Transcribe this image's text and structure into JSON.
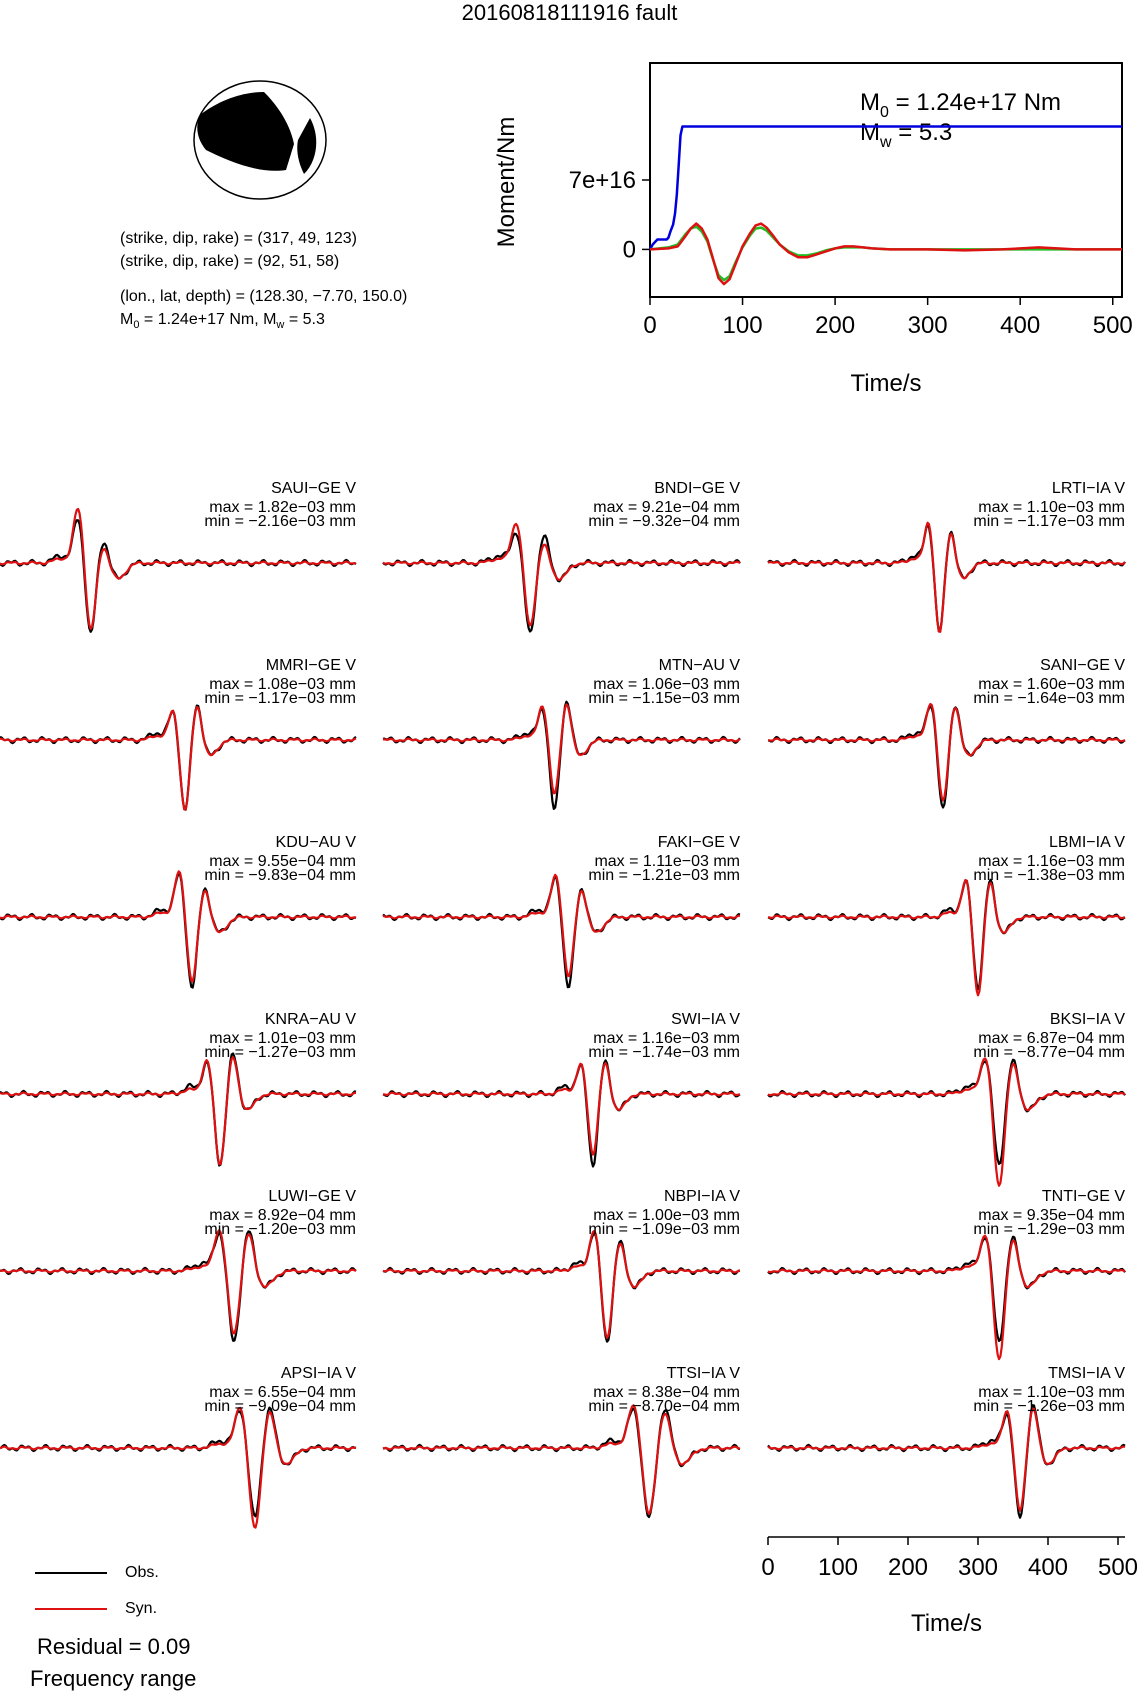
{
  "title": "20160818111916 fault",
  "beachball": {
    "fill": "#000000"
  },
  "params": {
    "plane1": "(strike, dip, rake) = (317, 49, 123)",
    "plane2": "(strike, dip, rake) = (92, 51, 58)",
    "location": "(lon., lat, depth) = (128.30, −7.70, 150.0)",
    "moment_prefix": "M",
    "moment_sub": "0",
    "moment_rest": " = 1.24e+17 Nm, M",
    "mw_sub": "w",
    "mw_rest": " = 5.3"
  },
  "legend": {
    "obs": "Obs.",
    "syn": "Syn.",
    "obs_color": "#000000",
    "syn_color": "#dd1111"
  },
  "residual": "Residual = 0.09",
  "frequency_label": "Frequency range",
  "chart_data": [
    {
      "type": "line",
      "xlabel": "Time/s",
      "ylabel": "Moment/Nm",
      "xlim": [
        0,
        510
      ],
      "ylim": [
        -4.8e+16,
        1.88e+17
      ],
      "xticks": [
        0,
        100,
        200,
        300,
        400,
        500
      ],
      "yticks": [
        {
          "value": 0,
          "label": "0"
        },
        {
          "value": 7e+16,
          "label": "7e+16"
        }
      ],
      "annotation": {
        "m0_main": "M",
        "m0_sub": "0",
        "m0_rest": " = 1.24e+17 Nm",
        "mw_main": "M",
        "mw_sub": "w",
        "mw_rest": " = 5.3"
      },
      "series": [
        {
          "color": "#0000dd",
          "x": [
            0,
            3,
            8,
            12,
            15,
            18,
            20,
            22,
            25,
            27,
            29,
            31,
            33,
            35,
            37,
            510
          ],
          "y": [
            0,
            5000000000000000.0,
            1e+16,
            1e+16,
            1e+16,
            1e+16,
            1.2e+16,
            1.8e+16,
            2.5e+16,
            3.6e+16,
            5.5e+16,
            8.5e+16,
            1.15e+17,
            1.24e+17,
            1.24e+17,
            1.24e+17
          ]
        },
        {
          "color": "#22bb22",
          "x": [
            0,
            20,
            30,
            38,
            44,
            50,
            56,
            62,
            68,
            74,
            80,
            86,
            92,
            100,
            108,
            114,
            120,
            126,
            132,
            140,
            150,
            160,
            170,
            180,
            190,
            200,
            210,
            220,
            230,
            240,
            260,
            280,
            300,
            340,
            380,
            420,
            460,
            510
          ],
          "y": [
            0,
            2000000000000000.0,
            5000000000000000.0,
            1.5e+16,
            2.1e+16,
            2.3e+16,
            1.8e+16,
            8000000000000000.0,
            -1e+16,
            -2.6e+16,
            -3.1e+16,
            -2.7e+16,
            -1.4e+16,
            2000000000000000.0,
            1.4e+16,
            2.1e+16,
            2.2e+16,
            1.9e+16,
            1.3e+16,
            5000000000000000.0,
            -2000000000000000.0,
            -6000000000000000.0,
            -6000000000000000.0,
            -4000000000000000.0,
            -1000000000000000.0,
            1000000000000000.0,
            2000000000000000.0,
            2000000000000000.0,
            2000000000000000.0,
            1000000000000000.0,
            0,
            0,
            0,
            0,
            0,
            0,
            0,
            0
          ]
        },
        {
          "color": "#dd1111",
          "x": [
            0,
            20,
            30,
            38,
            44,
            50,
            56,
            62,
            68,
            74,
            80,
            86,
            92,
            100,
            108,
            114,
            120,
            126,
            132,
            140,
            150,
            160,
            170,
            180,
            190,
            200,
            210,
            220,
            230,
            240,
            260,
            280,
            300,
            340,
            380,
            420,
            460,
            510
          ],
          "y": [
            0,
            1000000000000000.0,
            3000000000000000.0,
            1.3e+16,
            2.1e+16,
            2.6e+16,
            2.1e+16,
            1e+16,
            -9000000000000000.0,
            -2.9e+16,
            -3.5e+16,
            -3e+16,
            -1.6e+16,
            3000000000000000.0,
            1.6e+16,
            2.4e+16,
            2.6e+16,
            2.2e+16,
            1.5e+16,
            5000000000000000.0,
            -3000000000000000.0,
            -8000000000000000.0,
            -8000000000000000.0,
            -5000000000000000.0,
            -2000000000000000.0,
            1000000000000000.0,
            3000000000000000.0,
            3000000000000000.0,
            2000000000000000.0,
            1000000000000000.0,
            0,
            0,
            0,
            -1000000000000000.0,
            0,
            2000000000000000.0,
            0,
            0
          ]
        }
      ]
    },
    {
      "type": "line",
      "xlabel": "Time/s",
      "xlim": [
        0,
        510
      ],
      "xticks": [
        0,
        100,
        200,
        300,
        400,
        500
      ],
      "stations": [
        {
          "name": "SAUI−GE V",
          "max": "max = 1.82e−03 mm",
          "min": "min = −2.16e−03 mm",
          "t0": 130,
          "w": 15,
          "a1": 0.62,
          "a2": 1.0,
          "a3": 0.35,
          "ar": 0.95,
          "sp": 0.25
        },
        {
          "name": "BNDI−GE V",
          "max": "max = 9.21e−04 mm",
          "min": "min = −9.32e−04 mm",
          "t0": 210,
          "w": 16,
          "a1": 0.45,
          "a2": 1.0,
          "a3": 0.42,
          "ar": 0.9,
          "sp": 0.28
        },
        {
          "name": "LRTI−IA V",
          "max": "max = 1.10e−03 mm",
          "min": "min = −1.17e−03 mm",
          "t0": 245,
          "w": 13,
          "a1": 0.55,
          "a2": 1.0,
          "a3": 0.5,
          "ar": 1.0,
          "sp": 0.06
        },
        {
          "name": "MMRI−GE V",
          "max": "max = 1.08e−03 mm",
          "min": "min = −1.17e−03 mm",
          "t0": 265,
          "w": 14,
          "a1": 0.4,
          "a2": 1.0,
          "a3": 0.55,
          "ar": 1.0,
          "sp": 0.05
        },
        {
          "name": "MTN−AU V",
          "max": "max = 1.06e−03 mm",
          "min": "min = −1.15e−03 mm",
          "t0": 245,
          "w": 14,
          "a1": 0.45,
          "a2": 1.0,
          "a3": 0.6,
          "ar": 0.78,
          "sp": 0.08
        },
        {
          "name": "SANI−GE V",
          "max": "max = 1.60e−03 mm",
          "min": "min = −1.64e−03 mm",
          "t0": 250,
          "w": 14,
          "a1": 0.5,
          "a2": 1.0,
          "a3": 0.55,
          "ar": 0.88,
          "sp": 0.06
        },
        {
          "name": "KDU−AU V",
          "max": "max = 9.55e−04 mm",
          "min": "min = −9.83e−04 mm",
          "t0": 275,
          "w": 15,
          "a1": 0.6,
          "a2": 1.0,
          "a3": 0.45,
          "ar": 0.92,
          "sp": 0.07
        },
        {
          "name": "FAKI−GE V",
          "max": "max = 1.11e−03 mm",
          "min": "min = −1.21e−03 mm",
          "t0": 265,
          "w": 15,
          "a1": 0.55,
          "a2": 1.0,
          "a3": 0.45,
          "ar": 0.85,
          "sp": 0.07
        },
        {
          "name": "LBMI−IA V",
          "max": "max = 1.16e−03 mm",
          "min": "min = −1.38e−03 mm",
          "t0": 300,
          "w": 14,
          "a1": 0.5,
          "a2": 1.0,
          "a3": 0.55,
          "ar": 1.1,
          "sp": 0.05
        },
        {
          "name": "KNRA−AU V",
          "max": "max = 1.01e−03 mm",
          "min": "min = −1.27e−03 mm",
          "t0": 315,
          "w": 15,
          "a1": 0.45,
          "a2": 1.0,
          "a3": 0.6,
          "ar": 1.0,
          "sp": 0.07
        },
        {
          "name": "SWI−IA V",
          "max": "max = 1.16e−03 mm",
          "min": "min = −1.74e−03 mm",
          "t0": 300,
          "w": 14,
          "a1": 0.4,
          "a2": 1.0,
          "a3": 0.5,
          "ar": 0.85,
          "sp": 0.06
        },
        {
          "name": "BKSI−IA V",
          "max": "max = 6.87e−04 mm",
          "min": "min = −8.77e−04 mm",
          "t0": 330,
          "w": 16,
          "a1": 0.5,
          "a2": 1.0,
          "a3": 0.5,
          "ar": 1.3,
          "sp": 0.07
        },
        {
          "name": "LUWI−GE V",
          "max": "max = 8.92e−04 mm",
          "min": "min = −1.20e−03 mm",
          "t0": 335,
          "w": 17,
          "a1": 0.55,
          "a2": 1.0,
          "a3": 0.6,
          "ar": 0.9,
          "sp": 0.07
        },
        {
          "name": "NBPI−IA V",
          "max": "max = 1.00e−03 mm",
          "min": "min = −1.09e−03 mm",
          "t0": 320,
          "w": 15,
          "a1": 0.55,
          "a2": 1.0,
          "a3": 0.45,
          "ar": 0.95,
          "sp": 0.06
        },
        {
          "name": "TNTI−GE V",
          "max": "max = 9.35e−04 mm",
          "min": "min = −1.29e−03 mm",
          "t0": 330,
          "w": 16,
          "a1": 0.5,
          "a2": 1.0,
          "a3": 0.5,
          "ar": 1.25,
          "sp": 0.06
        },
        {
          "name": "APSI−IA V",
          "max": "max = 6.55e−04 mm",
          "min": "min = −9.09e−04 mm",
          "t0": 365,
          "w": 17,
          "a1": 0.55,
          "a2": 1.0,
          "a3": 0.6,
          "ar": 1.15,
          "sp": 0.08
        },
        {
          "name": "TTSI−IA V",
          "max": "max = 8.38e−04 mm",
          "min": "min = −8.70e−04 mm",
          "t0": 380,
          "w": 18,
          "a1": 0.55,
          "a2": 1.0,
          "a3": 0.6,
          "ar": 0.95,
          "sp": 0.1
        },
        {
          "name": "TMSI−IA V",
          "max": "max = 1.10e−03 mm",
          "min": "min = −1.26e−03 mm",
          "t0": 360,
          "w": 15,
          "a1": 0.5,
          "a2": 1.0,
          "a3": 0.65,
          "ar": 0.9,
          "sp": 0.07
        }
      ]
    }
  ]
}
